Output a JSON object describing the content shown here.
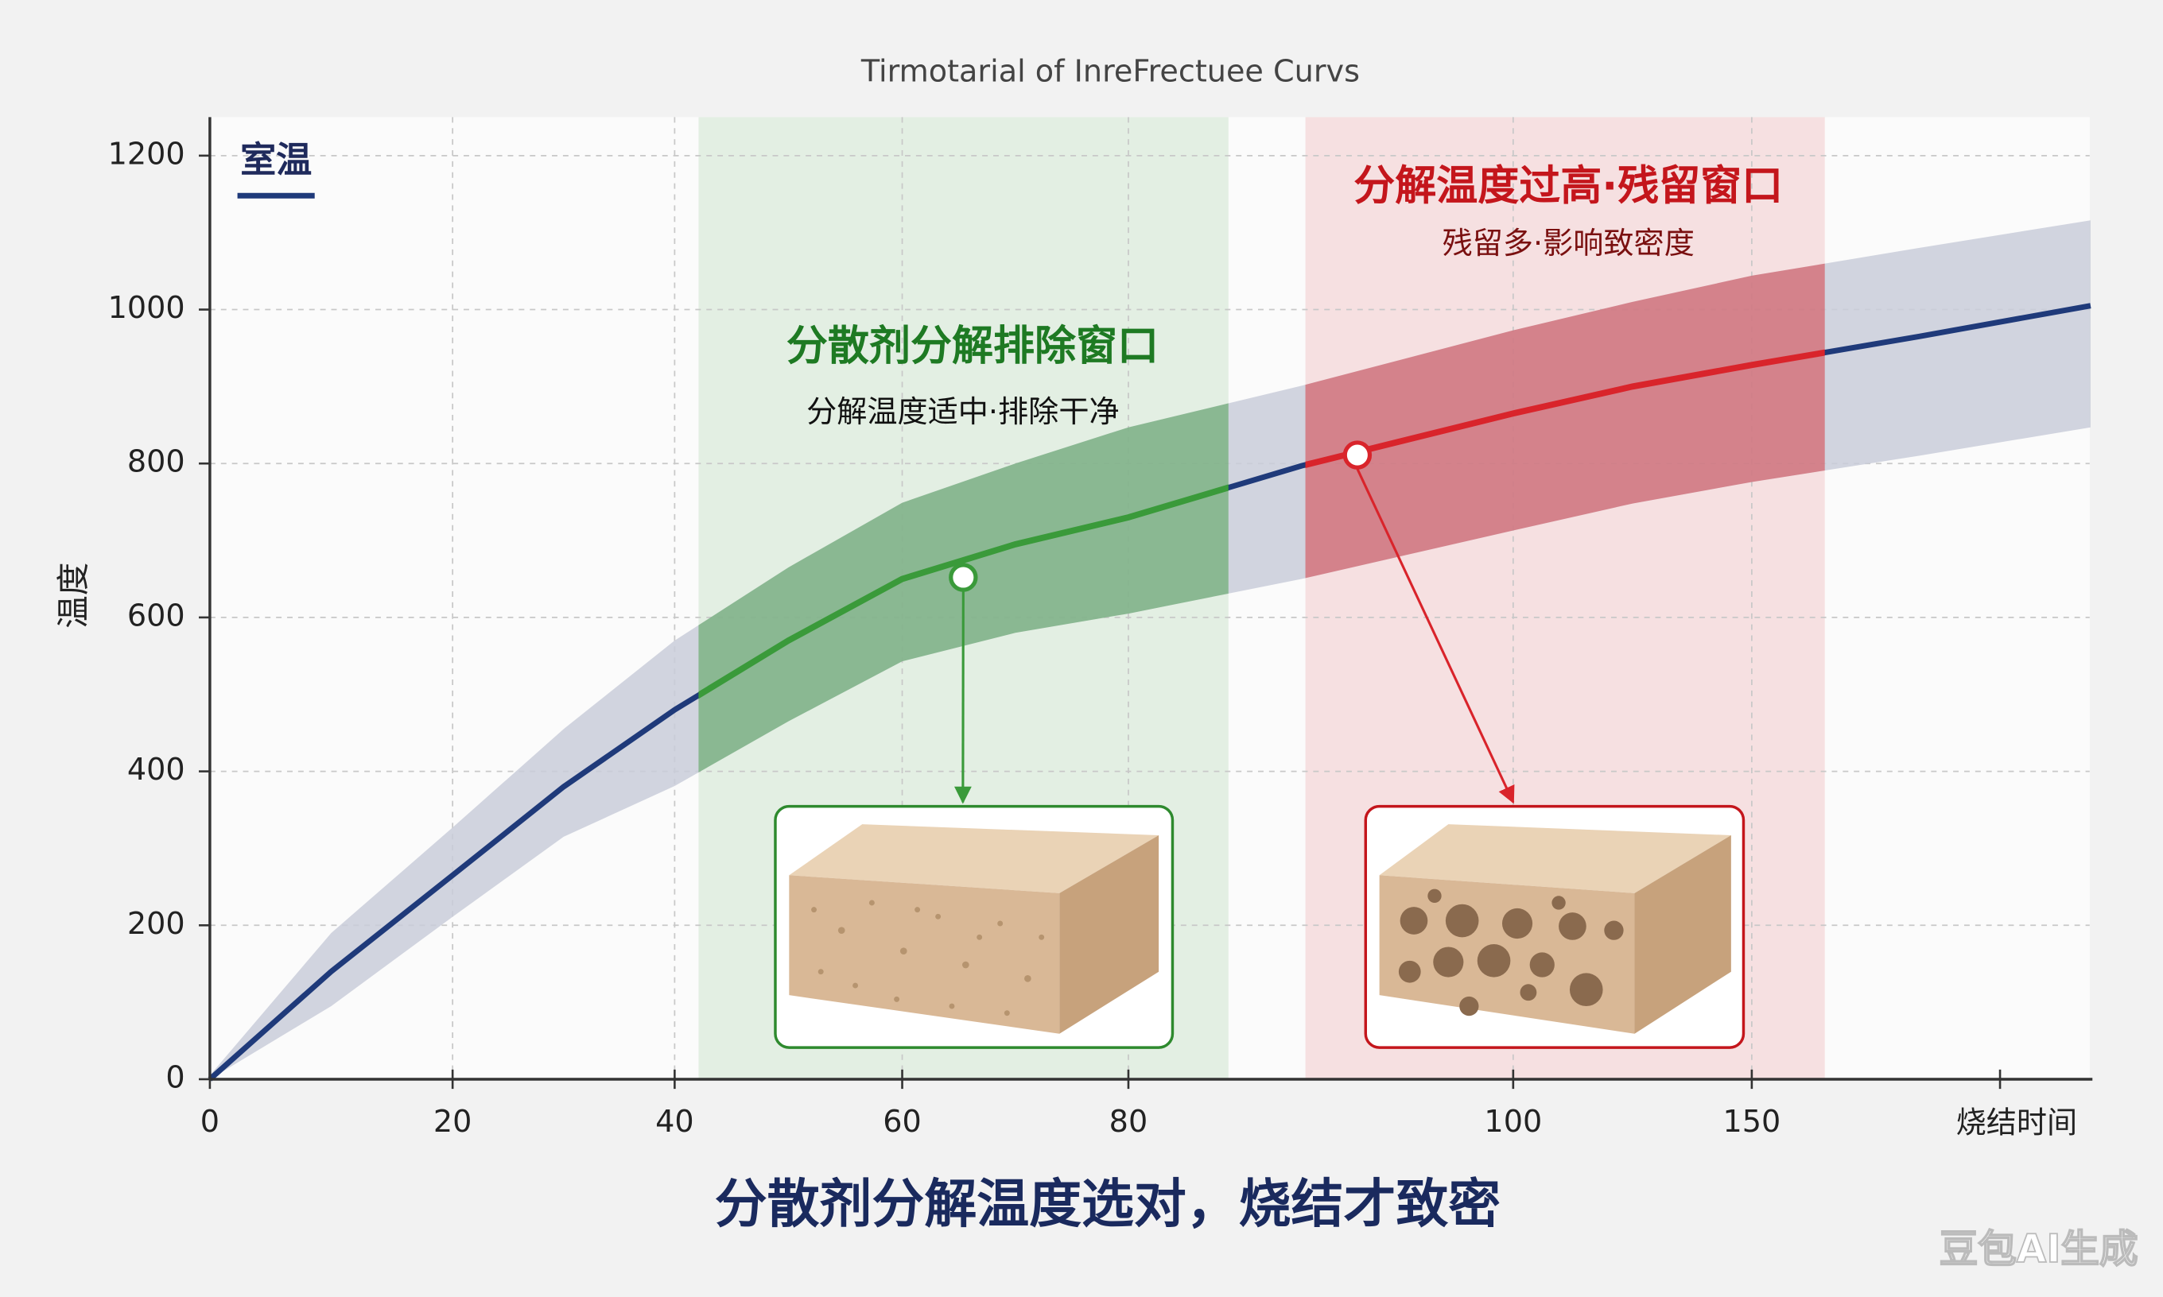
{
  "chart_data": {
    "type": "line",
    "title": "Tirmotarial of InreFrectuee Curvs",
    "x_label": "烧结时间",
    "y_label": "温度",
    "caption": "分散剂分解温度选对，烧结才致密",
    "watermark": "豆包AI生成",
    "xlim": [
      0,
      221
    ],
    "ylim": [
      0,
      1250
    ],
    "xticks": [
      0,
      20,
      40,
      60,
      80,
      100,
      150
    ],
    "yticks": [
      0,
      200,
      400,
      600,
      800,
      1000,
      1200
    ],
    "grid": true,
    "x": [
      0,
      10,
      20,
      30,
      40,
      50,
      60,
      70,
      80,
      89,
      100,
      125,
      150,
      185,
      221
    ],
    "series": [
      {
        "name": "室温",
        "color": "#1f3a7a",
        "values": [
          0,
          140,
          265,
          380,
          480,
          570,
          650,
          695,
          730,
          797,
          865,
          900,
          928,
          965,
          1005
        ]
      }
    ],
    "band": {
      "color": "#c9cdd9",
      "upper": [
        5,
        190,
        327,
        455,
        570,
        665,
        749,
        800,
        847,
        901,
        973,
        1010,
        1044,
        1080,
        1116
      ],
      "lower": [
        0,
        95,
        211,
        315,
        381,
        465,
        543,
        580,
        605,
        650,
        713,
        748,
        776,
        810,
        847
      ]
    },
    "windows": [
      {
        "title": "分散剂分解排除窗口",
        "subtitle": "分解温度适中·排除干净",
        "color": "#3a9a3a",
        "range": [
          42.1,
          85.2
        ],
        "marker": [
          65.4,
          652
        ]
      },
      {
        "title": "分解温度过高·残留窗口",
        "subtitle": "残留多·影响致密度",
        "color": "#d9242b",
        "range": [
          89.2,
          165.3
        ],
        "marker": [
          91.9,
          811
        ]
      }
    ]
  }
}
